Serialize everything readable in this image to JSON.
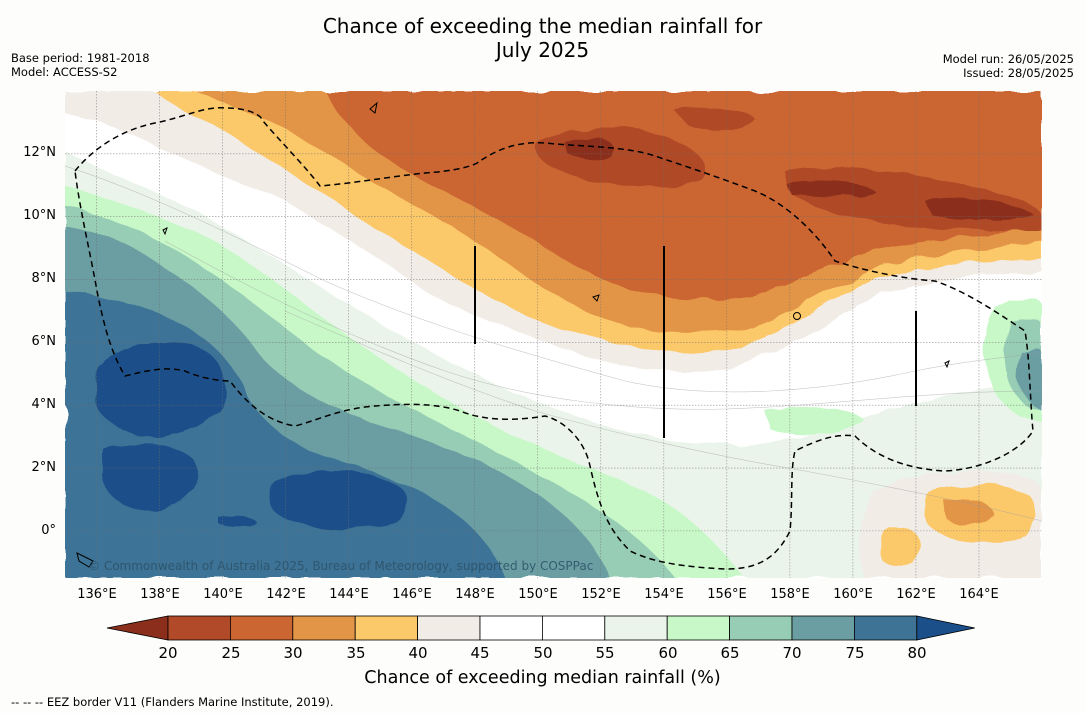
{
  "title_line1": "Chance of exceeding the median rainfall for",
  "title_line2": "July 2025",
  "left_meta": {
    "base_period": "Base period: 1981-2018",
    "model": "Model: ACCESS-S2"
  },
  "right_meta": {
    "model_run": "Model run: 26/05/2025",
    "issued": "Issued: 28/05/2025"
  },
  "map": {
    "lon_range": [
      135,
      166
    ],
    "lat_range": [
      -1.5,
      14
    ],
    "lat_labels": [
      "12°N",
      "10°N",
      "8°N",
      "6°N",
      "4°N",
      "2°N",
      "0°"
    ],
    "lat_values": [
      12,
      10,
      8,
      6,
      4,
      2,
      0
    ],
    "lon_labels": [
      "136°E",
      "138°E",
      "140°E",
      "142°E",
      "144°E",
      "146°E",
      "148°E",
      "150°E",
      "152°E",
      "154°E",
      "156°E",
      "158°E",
      "160°E",
      "162°E",
      "164°E"
    ],
    "lon_values": [
      136,
      138,
      140,
      142,
      144,
      146,
      148,
      150,
      152,
      154,
      156,
      158,
      160,
      162,
      164
    ],
    "copyright": "© Commonwealth of Australia 2025, Bureau of Meteorology, supported by COSPPac"
  },
  "colorbar": {
    "ticks": [
      "20",
      "25",
      "30",
      "35",
      "40",
      "45",
      "50",
      "55",
      "60",
      "65",
      "70",
      "75",
      "80"
    ],
    "colors": [
      "#8b2f1c",
      "#b04a28",
      "#cb6633",
      "#e39547",
      "#fcc96a",
      "#f2ece7",
      "#ffffff",
      "#ffffff",
      "#eaf4ea",
      "#c8f8c8",
      "#97cdb4",
      "#6a9ea3",
      "#3e7396",
      "#1b4f89"
    ],
    "label": "Chance of exceeding median rainfall (%)"
  },
  "footnote": "--  --  -- EEZ border V11 (Flanders Marine Institute, 2019)."
}
